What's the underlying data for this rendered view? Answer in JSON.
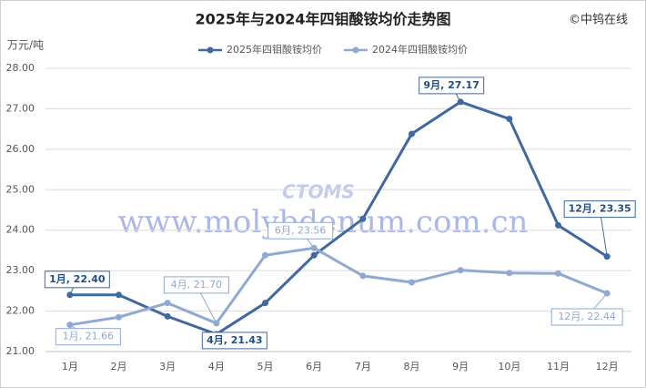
{
  "chart_data": {
    "type": "line",
    "title": "2025年与2024年四钼酸铵均价走势图",
    "source": "©中钨在线",
    "y_unit": "万元/吨",
    "watermark": "www.molybdenum.com.cn",
    "logo_text": "CTOMS",
    "categories": [
      "1月",
      "2月",
      "3月",
      "4月",
      "5月",
      "6月",
      "7月",
      "8月",
      "9月",
      "10月",
      "11月",
      "12月"
    ],
    "series": [
      {
        "name": "2025年四钼酸铵均价",
        "color": "#41689f",
        "values": [
          22.4,
          22.4,
          21.87,
          21.43,
          22.2,
          23.38,
          24.28,
          26.38,
          27.17,
          26.75,
          24.12,
          23.35
        ],
        "value_labels": [
          "1月, 22.40",
          null,
          null,
          "4月, 21.43",
          null,
          null,
          null,
          null,
          "9月, 27.17",
          null,
          null,
          "12月, 23.35"
        ]
      },
      {
        "name": "2024年四钼酸铵均价",
        "color": "#8fa9d3",
        "values": [
          21.66,
          21.85,
          22.2,
          21.7,
          23.38,
          23.56,
          22.87,
          22.71,
          23.01,
          22.94,
          22.93,
          22.44
        ],
        "value_labels": [
          "1月, 21.66",
          null,
          null,
          "4月, 21.70",
          null,
          "6月, 23.56",
          null,
          null,
          null,
          null,
          null,
          "12月, 22.44"
        ]
      }
    ],
    "ylim": [
      21,
      28
    ],
    "yticks": [
      {
        "value": 21,
        "label": "21.00"
      },
      {
        "value": 22,
        "label": "22.00"
      },
      {
        "value": 23,
        "label": "23.00"
      },
      {
        "value": 24,
        "label": "24.00"
      },
      {
        "value": 25,
        "label": "25.00"
      },
      {
        "value": 26,
        "label": "26.00"
      },
      {
        "value": 27,
        "label": "27.00"
      },
      {
        "value": 28,
        "label": "28.00"
      }
    ],
    "grid": true,
    "legend": "top"
  }
}
